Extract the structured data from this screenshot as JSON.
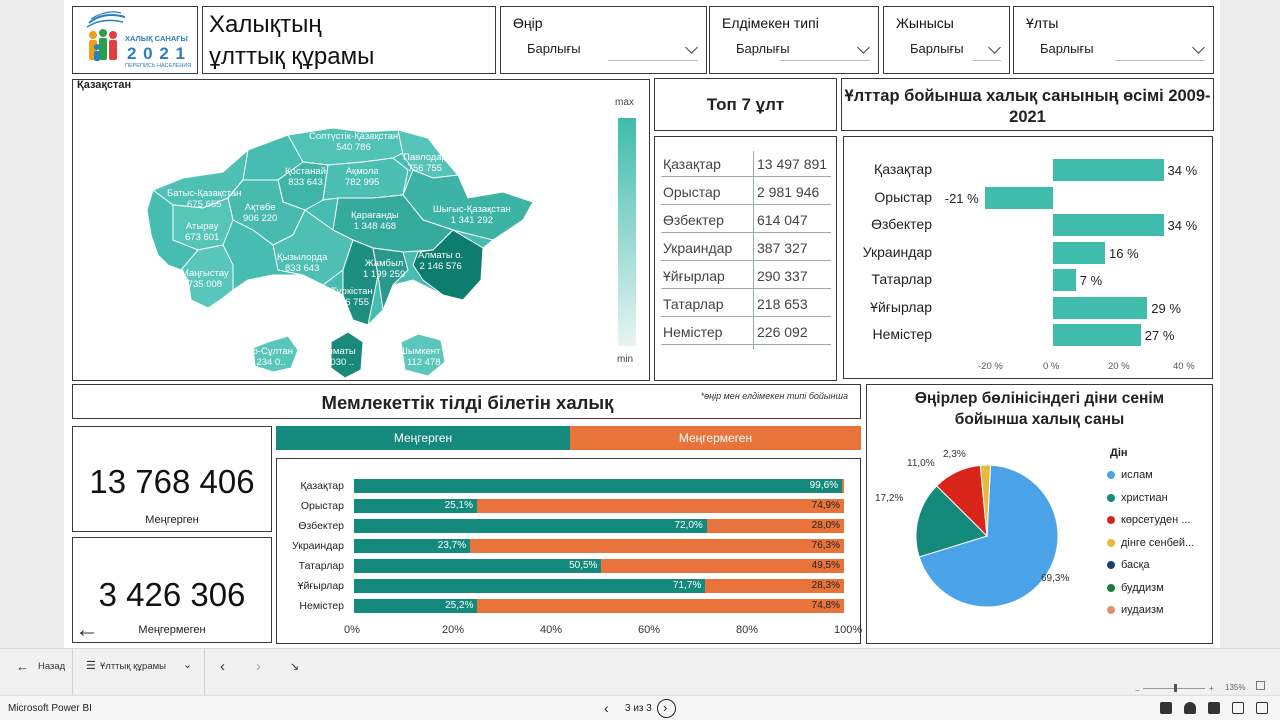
{
  "header": {
    "logo": {
      "line1": "ХАЛЫҚ САНАҒЫ",
      "year": "2 0 2 1",
      "line3": "ПЕРЕПИСЬ НАСЕЛЕНИЯ"
    },
    "title_line1": "Халықтың",
    "title_line2": "ұлттық құрамы",
    "filters": [
      {
        "label": "Өңір",
        "value": "Барлығы"
      },
      {
        "label": "Елдімекен типі",
        "value": "Барлығы"
      },
      {
        "label": "Жынысы",
        "value": "Барлығы"
      },
      {
        "label": "Ұлты",
        "value": "Барлығы"
      }
    ]
  },
  "map": {
    "title": "Қазақстан",
    "legend_max": "max",
    "legend_min": "min",
    "regions": [
      {
        "name": "Солтүстік-Қазақстан",
        "value": "540 786"
      },
      {
        "name": "Павлодар",
        "value": "756 755"
      },
      {
        "name": "Қостанай",
        "value": "833 643"
      },
      {
        "name": "Ақмола",
        "value": "782 995"
      },
      {
        "name": "Батыс-Қазақстан",
        "value": "675 655"
      },
      {
        "name": "Ақтөбе",
        "value": "906 220"
      },
      {
        "name": "Шығыс-Қазақстан",
        "value": "1 341 292"
      },
      {
        "name": "Қарағанды",
        "value": "1 348 468"
      },
      {
        "name": "Атырау",
        "value": "673 601"
      },
      {
        "name": "Қызылорда",
        "value": "833 643"
      },
      {
        "name": "Алматы о.",
        "value": "2 146 576"
      },
      {
        "name": "Жамбыл",
        "value": "1 199 259"
      },
      {
        "name": "Маңғыстау",
        "value": "735 008"
      },
      {
        "name": "Түркістан",
        "value": "756 755"
      },
      {
        "name": "Нұр-Сұлтан",
        "value": "1 234 0.."
      },
      {
        "name": "Алматы",
        "value": "2 030 .."
      },
      {
        "name": "Шымкент",
        "value": "1 112 478"
      }
    ]
  },
  "top7": {
    "title": "Топ 7 ұлт",
    "rows": [
      {
        "name": "Қазақтар",
        "value": "13 497 891"
      },
      {
        "name": "Орыстар",
        "value": "2 981 946"
      },
      {
        "name": "Өзбектер",
        "value": "614 047"
      },
      {
        "name": "Украиндар",
        "value": "387 327"
      },
      {
        "name": "Ұйғырлар",
        "value": "290 337"
      },
      {
        "name": "Татарлар",
        "value": "218 653"
      },
      {
        "name": "Немістер",
        "value": "226 092"
      }
    ]
  },
  "language": {
    "title": "Мемлекеттік тілді білетін халық",
    "note": "*өңір мен елдімекен типі бойынша",
    "kpi_knows": {
      "value": "13 768 406",
      "caption": "Меңгерген"
    },
    "kpi_not": {
      "value": "3 426 306",
      "caption": "Меңгермеген"
    },
    "legend_knows": "Меңгерген",
    "legend_not": "Меңгермеген"
  },
  "religion": {
    "title_line1": "Өңірлер бөлінісіндегі діни сенім",
    "title_line2": "бойынша халық саны",
    "legend_title": "Дін",
    "items": [
      {
        "label": "ислам",
        "color": "#4aa3e8"
      },
      {
        "label": "христиан",
        "color": "#148a7c"
      },
      {
        "label": "көрсетуден ...",
        "color": "#d9241b"
      },
      {
        "label": "дінге сенбей...",
        "color": "#e8b83a"
      },
      {
        "label": "басқа",
        "color": "#1f3f6e"
      },
      {
        "label": "буддизм",
        "color": "#1a7a3a"
      },
      {
        "label": "иудаизм",
        "color": "#e09070"
      }
    ],
    "pct_labels": [
      "69,3%",
      "17,2%",
      "11,0%",
      "2,3%"
    ]
  },
  "chart_data": [
    {
      "type": "bar",
      "title": "Ұлттар бойынша халық санының өсімі 2009-2021",
      "categories": [
        "Қазақтар",
        "Орыстар",
        "Өзбектер",
        "Украиндар",
        "Татарлар",
        "Ұйғырлар",
        "Немістер"
      ],
      "values": [
        34,
        -21,
        34,
        16,
        7,
        29,
        27
      ],
      "value_labels": [
        "34 %",
        "-21 %",
        "34 %",
        "16 %",
        "7 %",
        "29 %",
        "27 %"
      ],
      "x_ticks": [
        "-20 %",
        "0 %",
        "20 %",
        "40 %"
      ],
      "xlim": [
        -23,
        40
      ]
    },
    {
      "type": "bar",
      "title": "",
      "categories": [
        "Қазақтар",
        "Орыстар",
        "Өзбектер",
        "Украиндар",
        "Татарлар",
        "Ұйғырлар",
        "Немістер"
      ],
      "series": [
        {
          "name": "Меңгерген",
          "values": [
            99.6,
            25.1,
            72.0,
            23.7,
            50.5,
            71.7,
            25.2
          ],
          "labels": [
            "99,6%",
            "25,1%",
            "72,0%",
            "23,7%",
            "50,5%",
            "71,7%",
            "25,2%"
          ]
        },
        {
          "name": "Меңгермеген",
          "values": [
            0.4,
            74.9,
            28.0,
            76.3,
            49.5,
            28.3,
            74.8
          ],
          "labels": [
            "",
            "74,9%",
            "28,0%",
            "76,3%",
            "49,5%",
            "28,3%",
            "74,8%"
          ]
        }
      ],
      "x_ticks": [
        "0%",
        "20%",
        "40%",
        "60%",
        "80%",
        "100%"
      ],
      "stacked": true
    },
    {
      "type": "pie",
      "title": "Өңірлер бөлінісіндегі діни сенім бойынша халық саны",
      "categories": [
        "ислам",
        "христиан",
        "көрсетуден ...",
        "дінге сенбей..."
      ],
      "values": [
        69.3,
        17.2,
        11.0,
        2.3
      ]
    }
  ],
  "navbar": {
    "back_label": "Назад",
    "page_label": "Ұлттық құрамы"
  },
  "statusbar": {
    "app_name": "Microsoft Power BI",
    "pager": "3 из 3",
    "zoom": "135%"
  }
}
